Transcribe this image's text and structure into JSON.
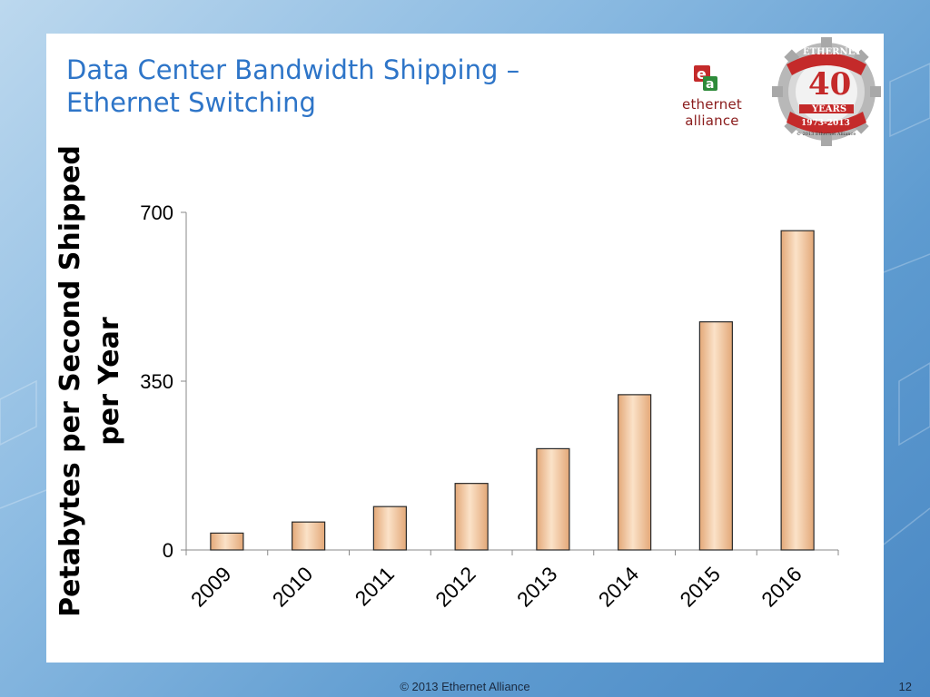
{
  "slide": {
    "title_line1": "Data Center Bandwidth Shipping –",
    "title_line2": "Ethernet Switching"
  },
  "logos": {
    "ea_brand": "ethernet alliance",
    "badge_top": "ETHERNET",
    "badge_number": "40",
    "badge_years": "YEARS",
    "badge_range": "1973-2013",
    "badge_copyright": "© 2013 Ethernet Alliance"
  },
  "colors": {
    "title": "#2e75c8",
    "bar_fill_light": "#fbe2c8",
    "bar_fill_dark": "#e3a878",
    "bar_stroke": "#2a2a2a",
    "brand_red": "#c42a2a"
  },
  "chart_data": {
    "type": "bar",
    "categories": [
      "2009",
      "2010",
      "2011",
      "2012",
      "2013",
      "2014",
      "2015",
      "2016"
    ],
    "values": [
      35,
      58,
      90,
      138,
      210,
      322,
      473,
      662
    ],
    "ylabel": "Petabytes per Second Shipped per Year",
    "ylabel_lines": [
      "Petabytes per Second Shipped",
      "per Year"
    ],
    "yticks": [
      0,
      350,
      700
    ],
    "ylim": [
      0,
      700
    ],
    "grid": false,
    "legend": "none"
  },
  "footer": {
    "copyright": "© 2013 Ethernet Alliance",
    "page_number": "12"
  }
}
